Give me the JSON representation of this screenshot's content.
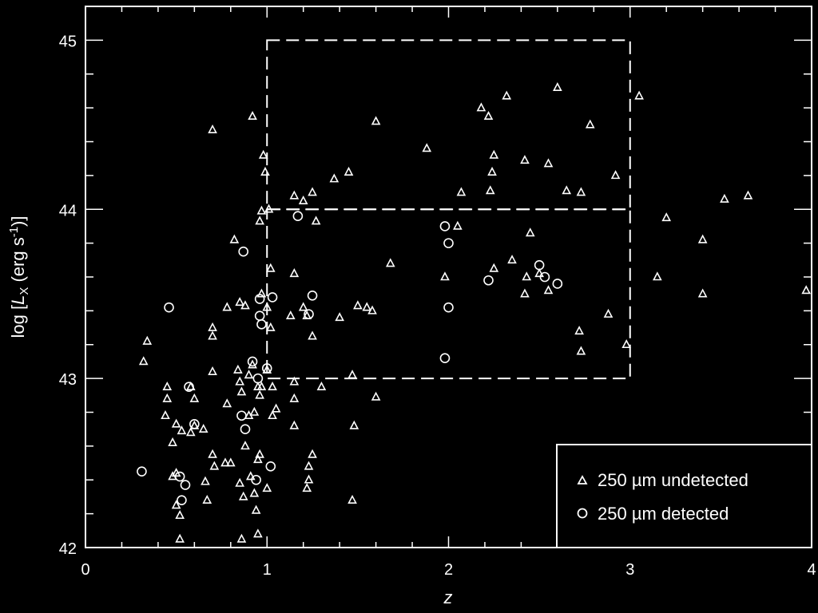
{
  "chart_data": {
    "type": "scatter",
    "xlabel": "z",
    "ylabel_parts": {
      "pre": "log [",
      "L": "L",
      "sub": "X",
      "mid": " (erg s",
      "sup": "-1",
      "post": ")]"
    },
    "xlim": [
      0,
      4
    ],
    "ylim": [
      42,
      45.2
    ],
    "xticks": [
      "0",
      "1",
      "2",
      "3",
      "4"
    ],
    "yticks": [
      "42",
      "43",
      "44",
      "45"
    ],
    "colors": {
      "background": "#000000",
      "foreground": "#ffffff"
    },
    "legend": {
      "position": "bottom-right",
      "entries": [
        {
          "marker": "triangle",
          "label": "250 µm undetected"
        },
        {
          "marker": "circle",
          "label": "250 µm detected"
        }
      ]
    },
    "regions": [
      {
        "x": [
          1.0,
          3.0
        ],
        "y": [
          44.0,
          45.0
        ],
        "style": "dashed"
      },
      {
        "x": [
          1.0,
          3.0
        ],
        "y": [
          43.0,
          44.0
        ],
        "style": "dashed"
      }
    ],
    "series": [
      {
        "marker": "triangle",
        "points": [
          [
            0.32,
            43.1
          ],
          [
            0.34,
            43.22
          ],
          [
            0.7,
            44.47
          ],
          [
            0.92,
            44.55
          ],
          [
            0.98,
            44.32
          ],
          [
            0.99,
            44.22
          ],
          [
            0.97,
            43.99
          ],
          [
            0.96,
            43.93
          ],
          [
            1.01,
            44.0
          ],
          [
            1.02,
            43.65
          ],
          [
            1.15,
            44.08
          ],
          [
            1.2,
            44.05
          ],
          [
            1.25,
            44.1
          ],
          [
            1.27,
            43.93
          ],
          [
            1.15,
            43.62
          ],
          [
            1.37,
            44.18
          ],
          [
            1.45,
            44.22
          ],
          [
            1.6,
            44.52
          ],
          [
            1.68,
            43.68
          ],
          [
            1.88,
            44.36
          ],
          [
            1.98,
            43.6
          ],
          [
            2.05,
            43.9
          ],
          [
            2.07,
            44.1
          ],
          [
            2.18,
            44.6
          ],
          [
            2.22,
            44.55
          ],
          [
            2.25,
            44.32
          ],
          [
            2.24,
            44.22
          ],
          [
            2.23,
            44.11
          ],
          [
            2.32,
            44.67
          ],
          [
            2.42,
            44.29
          ],
          [
            2.55,
            44.27
          ],
          [
            2.6,
            44.72
          ],
          [
            2.65,
            44.11
          ],
          [
            2.73,
            44.1
          ],
          [
            2.78,
            44.5
          ],
          [
            2.92,
            44.2
          ],
          [
            3.05,
            44.67
          ],
          [
            3.2,
            43.95
          ],
          [
            3.4,
            43.82
          ],
          [
            3.52,
            44.06
          ],
          [
            3.65,
            44.08
          ],
          [
            3.15,
            43.6
          ],
          [
            3.4,
            43.5
          ],
          [
            3.97,
            43.52
          ],
          [
            2.98,
            43.2
          ],
          [
            2.72,
            43.28
          ],
          [
            2.73,
            43.16
          ],
          [
            2.88,
            43.38
          ],
          [
            2.25,
            43.65
          ],
          [
            2.35,
            43.7
          ],
          [
            2.42,
            43.5
          ],
          [
            2.45,
            43.86
          ],
          [
            2.5,
            43.62
          ],
          [
            2.55,
            43.52
          ],
          [
            2.43,
            43.6
          ],
          [
            1.5,
            43.43
          ],
          [
            1.55,
            43.42
          ],
          [
            1.58,
            43.4
          ],
          [
            1.4,
            43.36
          ],
          [
            1.3,
            42.95
          ],
          [
            1.47,
            43.02
          ],
          [
            1.6,
            42.89
          ],
          [
            1.48,
            42.72
          ],
          [
            1.47,
            42.28
          ],
          [
            1.25,
            43.25
          ],
          [
            1.2,
            43.42
          ],
          [
            1.22,
            43.37
          ],
          [
            1.13,
            43.37
          ],
          [
            1.02,
            43.3
          ],
          [
            1.0,
            43.42
          ],
          [
            0.97,
            43.5
          ],
          [
            0.88,
            43.43
          ],
          [
            0.85,
            43.45
          ],
          [
            0.78,
            43.42
          ],
          [
            0.7,
            43.3
          ],
          [
            0.7,
            43.25
          ],
          [
            0.7,
            43.04
          ],
          [
            0.82,
            43.82
          ],
          [
            0.45,
            42.88
          ],
          [
            0.44,
            42.78
          ],
          [
            0.5,
            42.73
          ],
          [
            0.48,
            42.62
          ],
          [
            0.53,
            42.69
          ],
          [
            0.58,
            42.68
          ],
          [
            0.6,
            42.72
          ],
          [
            0.65,
            42.7
          ],
          [
            0.66,
            42.39
          ],
          [
            0.67,
            42.28
          ],
          [
            0.7,
            42.55
          ],
          [
            0.71,
            42.48
          ],
          [
            0.77,
            42.5
          ],
          [
            0.8,
            42.5
          ],
          [
            0.78,
            42.85
          ],
          [
            0.84,
            43.05
          ],
          [
            0.85,
            42.98
          ],
          [
            0.86,
            42.92
          ],
          [
            0.9,
            43.02
          ],
          [
            0.92,
            43.08
          ],
          [
            0.95,
            42.95
          ],
          [
            0.88,
            42.6
          ],
          [
            0.9,
            42.78
          ],
          [
            0.93,
            42.8
          ],
          [
            0.95,
            42.52
          ],
          [
            0.96,
            42.55
          ],
          [
            0.96,
            42.9
          ],
          [
            0.97,
            42.95
          ],
          [
            1.0,
            43.05
          ],
          [
            1.03,
            42.95
          ],
          [
            1.03,
            42.78
          ],
          [
            1.05,
            42.82
          ],
          [
            1.15,
            42.98
          ],
          [
            1.15,
            42.88
          ],
          [
            1.15,
            42.72
          ],
          [
            1.25,
            42.55
          ],
          [
            1.23,
            42.48
          ],
          [
            1.23,
            42.4
          ],
          [
            1.22,
            42.35
          ],
          [
            1.0,
            42.35
          ],
          [
            0.93,
            42.32
          ],
          [
            0.94,
            42.22
          ],
          [
            0.91,
            42.42
          ],
          [
            0.85,
            42.38
          ],
          [
            0.87,
            42.3
          ],
          [
            0.86,
            42.05
          ],
          [
            0.95,
            42.08
          ],
          [
            0.52,
            42.05
          ],
          [
            0.52,
            42.19
          ],
          [
            0.5,
            42.25
          ],
          [
            0.48,
            42.42
          ],
          [
            0.5,
            42.44
          ],
          [
            0.45,
            42.95
          ],
          [
            0.6,
            42.88
          ],
          [
            0.58,
            42.95
          ]
        ]
      },
      {
        "marker": "circle",
        "points": [
          [
            0.31,
            42.45
          ],
          [
            0.46,
            43.42
          ],
          [
            0.57,
            42.95
          ],
          [
            0.6,
            42.73
          ],
          [
            0.52,
            42.42
          ],
          [
            0.53,
            42.28
          ],
          [
            0.55,
            42.37
          ],
          [
            0.87,
            43.75
          ],
          [
            0.86,
            42.78
          ],
          [
            0.88,
            42.7
          ],
          [
            0.92,
            43.1
          ],
          [
            0.95,
            43.0
          ],
          [
            0.96,
            43.37
          ],
          [
            0.97,
            43.32
          ],
          [
            1.0,
            43.06
          ],
          [
            1.03,
            43.48
          ],
          [
            0.96,
            43.47
          ],
          [
            1.02,
            42.48
          ],
          [
            0.94,
            42.4
          ],
          [
            1.17,
            43.96
          ],
          [
            1.25,
            43.49
          ],
          [
            1.23,
            43.38
          ],
          [
            1.98,
            43.9
          ],
          [
            2.0,
            43.8
          ],
          [
            2.0,
            43.42
          ],
          [
            1.98,
            43.12
          ],
          [
            2.22,
            43.58
          ],
          [
            2.5,
            43.67
          ],
          [
            2.53,
            43.6
          ],
          [
            2.6,
            43.56
          ]
        ]
      }
    ]
  }
}
